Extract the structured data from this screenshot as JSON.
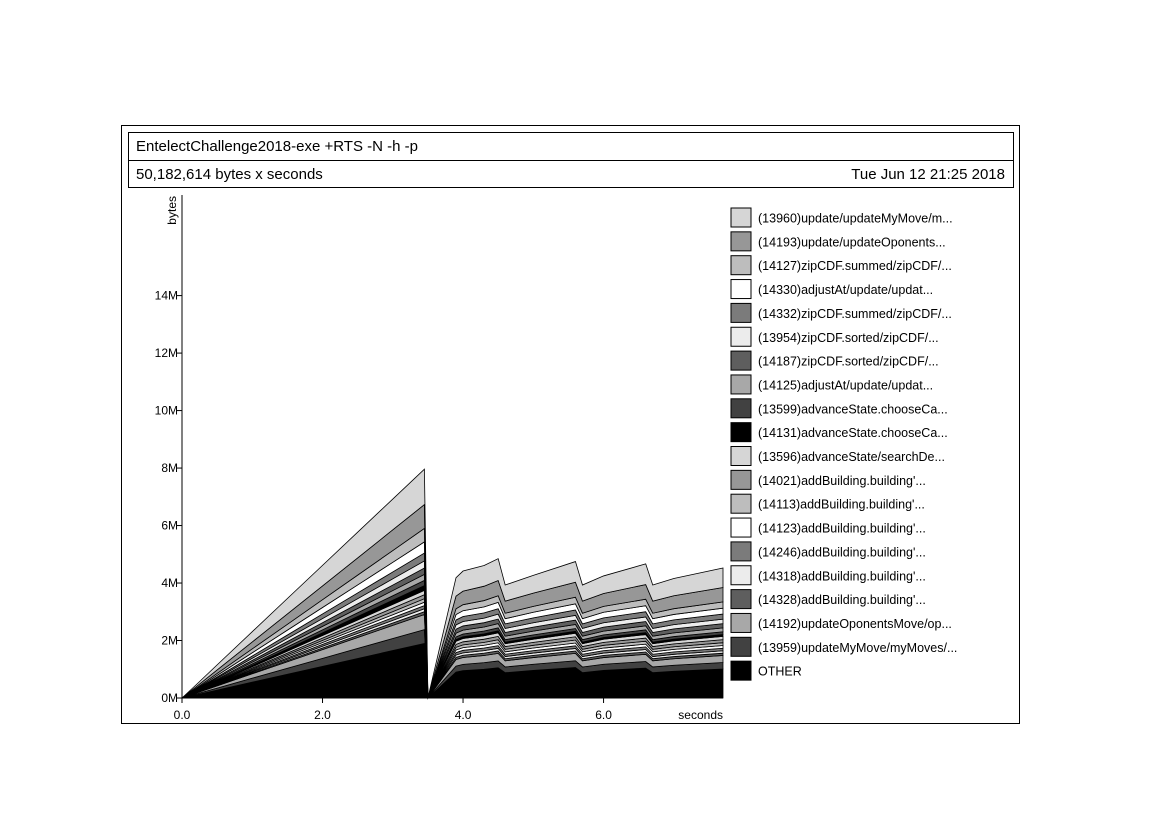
{
  "header": {
    "title": "EntelectChallenge2018-exe +RTS -N -h -p",
    "subtitle": "50,182,614 bytes x seconds",
    "date": "Tue Jun 12 21:25 2018"
  },
  "chart_data": {
    "type": "area",
    "stacked": true,
    "ylabel": "bytes",
    "xlabel": "seconds",
    "xlim": [
      0,
      7.7
    ],
    "ylim": [
      0,
      17500000
    ],
    "x_ticks": [
      "0.0",
      "2.0",
      "4.0",
      "6.0"
    ],
    "y_ticks": [
      "0M",
      "2M",
      "4M",
      "6M",
      "8M",
      "10M",
      "12M",
      "14M"
    ],
    "x": [
      0.0,
      0.2,
      0.5,
      1.0,
      1.5,
      2.0,
      2.5,
      3.0,
      3.45,
      3.5,
      3.9,
      4.0,
      4.3,
      4.5,
      4.6,
      5.0,
      5.6,
      5.7,
      6.0,
      6.6,
      6.7,
      7.0,
      7.7
    ],
    "series": [
      {
        "name": "(13960)update/updateMyMove/m...",
        "color": "#d6d6d6",
        "values": [
          0,
          68000,
          178000,
          357000,
          536000,
          714000,
          893000,
          1072000,
          1232000,
          0,
          640000,
          700000,
          720000,
          760000,
          560000,
          620000,
          720000,
          560000,
          610000,
          720000,
          560000,
          600000,
          680000
        ]
      },
      {
        "name": "(14193)update/updateOponents...",
        "color": "#979797",
        "values": [
          0,
          48000,
          120000,
          240000,
          360000,
          480000,
          600000,
          720000,
          828000,
          0,
          440000,
          470000,
          500000,
          530000,
          420000,
          460000,
          520000,
          420000,
          450000,
          510000,
          420000,
          450000,
          500000
        ]
      },
      {
        "name": "(14127)zipCDF.summed/zipCDF/...",
        "color": "#bdbdbd",
        "values": [
          0,
          27000,
          68000,
          136000,
          204000,
          272000,
          340000,
          408000,
          470000,
          0,
          200000,
          210000,
          220000,
          230000,
          190000,
          205000,
          230000,
          190000,
          205000,
          225000,
          190000,
          200000,
          220000
        ]
      },
      {
        "name": "(14330)adjustAt/update/updat...",
        "color": "#ffffff",
        "values": [
          0,
          22000,
          56000,
          112000,
          168000,
          224000,
          280000,
          336000,
          387000,
          0,
          190000,
          200000,
          210000,
          220000,
          180000,
          195000,
          215000,
          180000,
          195000,
          210000,
          180000,
          190000,
          205000
        ]
      },
      {
        "name": "(14332)zipCDF.summed/zipCDF/...",
        "color": "#7b7b7b",
        "values": [
          0,
          16000,
          40000,
          80000,
          120000,
          160000,
          200000,
          240000,
          276000,
          0,
          170000,
          175000,
          180000,
          190000,
          160000,
          170000,
          185000,
          160000,
          170000,
          180000,
          160000,
          165000,
          175000
        ]
      },
      {
        "name": "(13954)zipCDF.sorted/zipCDF/...",
        "color": "#ececec",
        "values": [
          0,
          14000,
          36000,
          72000,
          108000,
          144000,
          180000,
          216000,
          248000,
          0,
          150000,
          155000,
          160000,
          170000,
          140000,
          150000,
          165000,
          140000,
          150000,
          160000,
          140000,
          148000,
          158000
        ]
      },
      {
        "name": "(14187)zipCDF.sorted/zipCDF/...",
        "color": "#5e5e5e",
        "values": [
          0,
          13000,
          32000,
          64000,
          96000,
          128000,
          160000,
          192000,
          221000,
          0,
          140000,
          145000,
          150000,
          158000,
          130000,
          140000,
          152000,
          130000,
          140000,
          150000,
          130000,
          138000,
          146000
        ]
      },
      {
        "name": "(14125)adjustAt/update/updat...",
        "color": "#a8a8a8",
        "values": [
          0,
          12000,
          30000,
          60000,
          90000,
          120000,
          150000,
          180000,
          207000,
          0,
          130000,
          135000,
          140000,
          148000,
          120000,
          130000,
          142000,
          120000,
          130000,
          140000,
          120000,
          128000,
          136000
        ]
      },
      {
        "name": "(13599)advanceState.chooseCa...",
        "color": "#414141",
        "values": [
          0,
          10000,
          26000,
          52000,
          78000,
          104000,
          130000,
          156000,
          180000,
          0,
          90000,
          95000,
          100000,
          105000,
          85000,
          92000,
          100000,
          85000,
          92000,
          100000,
          85000,
          90000,
          98000
        ]
      },
      {
        "name": "(14131)advanceState.chooseCa...",
        "color": "#000000",
        "values": [
          0,
          9000,
          24000,
          48000,
          72000,
          96000,
          120000,
          144000,
          166000,
          0,
          60000,
          62000,
          64000,
          68000,
          55000,
          60000,
          66000,
          55000,
          60000,
          65000,
          55000,
          58000,
          63000
        ]
      },
      {
        "name": "(13596)advanceState/searchDe...",
        "color": "#d6d6d6",
        "values": [
          0,
          9000,
          22000,
          44000,
          66000,
          88000,
          110000,
          132000,
          152000,
          0,
          110000,
          115000,
          120000,
          125000,
          100000,
          110000,
          122000,
          100000,
          110000,
          120000,
          100000,
          106000,
          114000
        ]
      },
      {
        "name": "(14021)addBuilding.building'...",
        "color": "#979797",
        "values": [
          0,
          8000,
          20000,
          40000,
          60000,
          80000,
          100000,
          120000,
          138000,
          0,
          100000,
          105000,
          110000,
          115000,
          95000,
          102000,
          112000,
          95000,
          102000,
          110000,
          95000,
          100000,
          106000
        ]
      },
      {
        "name": "(14113)addBuilding.building'...",
        "color": "#bdbdbd",
        "values": [
          0,
          7000,
          18000,
          36000,
          54000,
          72000,
          90000,
          108000,
          124000,
          0,
          95000,
          98000,
          102000,
          106000,
          88000,
          95000,
          104000,
          88000,
          95000,
          102000,
          88000,
          92000,
          98000
        ]
      },
      {
        "name": "(14123)addBuilding.building'...",
        "color": "#ffffff",
        "values": [
          0,
          7000,
          17000,
          34000,
          51000,
          68000,
          85000,
          102000,
          117000,
          0,
          90000,
          93000,
          96000,
          100000,
          84000,
          90000,
          98000,
          84000,
          90000,
          96000,
          84000,
          88000,
          94000
        ]
      },
      {
        "name": "(14246)addBuilding.building'...",
        "color": "#7b7b7b",
        "values": [
          0,
          6000,
          16000,
          32000,
          48000,
          64000,
          80000,
          96000,
          110000,
          0,
          85000,
          88000,
          91000,
          95000,
          80000,
          85000,
          93000,
          80000,
          85000,
          91000,
          80000,
          84000,
          89000
        ]
      },
      {
        "name": "(14318)addBuilding.building'...",
        "color": "#ececec",
        "values": [
          0,
          6000,
          15000,
          30000,
          45000,
          60000,
          75000,
          90000,
          104000,
          0,
          80000,
          83000,
          86000,
          90000,
          76000,
          80000,
          88000,
          76000,
          80000,
          86000,
          76000,
          79000,
          84000
        ]
      },
      {
        "name": "(14328)addBuilding.building'...",
        "color": "#5e5e5e",
        "values": [
          0,
          6000,
          14000,
          28000,
          42000,
          56000,
          70000,
          84000,
          97000,
          0,
          75000,
          78000,
          81000,
          85000,
          72000,
          76000,
          83000,
          72000,
          76000,
          81000,
          72000,
          75000,
          79000
        ]
      },
      {
        "name": "(14192)updateOponentsMove/op...",
        "color": "#a8a8a8",
        "values": [
          0,
          30000,
          76000,
          152000,
          228000,
          304000,
          380000,
          456000,
          524000,
          0,
          230000,
          240000,
          250000,
          262000,
          215000,
          232000,
          256000,
          215000,
          232000,
          250000,
          215000,
          226000,
          244000
        ]
      },
      {
        "name": "(13959)updateMyMove/myMoves/...",
        "color": "#414141",
        "values": [
          0,
          28000,
          70000,
          140000,
          210000,
          280000,
          350000,
          420000,
          483000,
          0,
          210000,
          220000,
          230000,
          240000,
          200000,
          215000,
          236000,
          200000,
          215000,
          230000,
          200000,
          210000,
          226000
        ]
      },
      {
        "name": "OTHER",
        "color": "#000000",
        "values": [
          0,
          110000,
          275000,
          550000,
          825000,
          1100000,
          1375000,
          1650000,
          1897000,
          0,
          900000,
          950000,
          1000000,
          1050000,
          880000,
          960000,
          1060000,
          880000,
          960000,
          1040000,
          880000,
          930000,
          1010000
        ]
      }
    ]
  }
}
